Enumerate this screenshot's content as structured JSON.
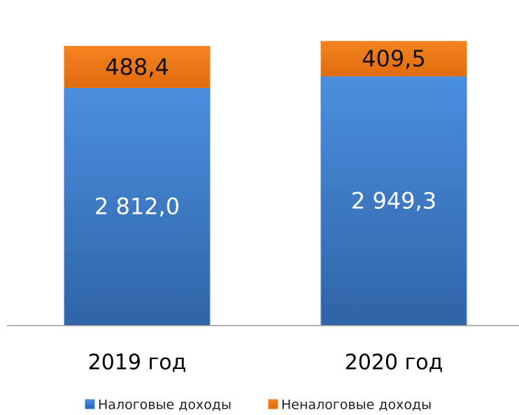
{
  "chart_data": {
    "type": "stacked_bar",
    "categories": [
      "2019 год",
      "2020 год"
    ],
    "series": [
      {
        "name": "Налоговые доходы",
        "color": "#3f7fcf",
        "values": [
          2812.0,
          2949.3
        ],
        "value_labels": [
          "2 812,0",
          "2 949,3"
        ]
      },
      {
        "name": "Неналоговые доходы",
        "color": "#f07a14",
        "values": [
          488.4,
          409.5
        ],
        "value_labels": [
          "488,4",
          "409,5"
        ]
      }
    ],
    "ylim": [
      0,
      3600
    ]
  }
}
